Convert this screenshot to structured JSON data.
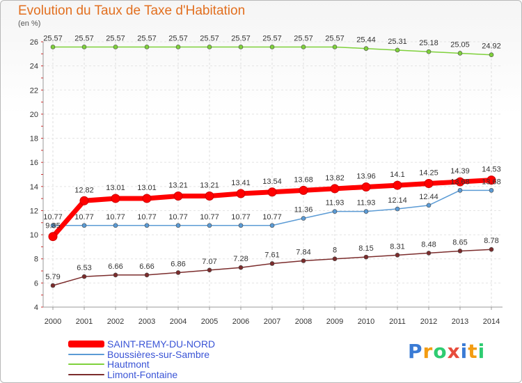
{
  "chart_data": {
    "type": "line",
    "title": "Evolution du Taux de Taxe d'Habitation",
    "ylabel": "(en %)",
    "xlabel": "",
    "ylim": [
      4,
      26
    ],
    "yticks": [
      4,
      6,
      8,
      10,
      12,
      14,
      16,
      18,
      20,
      22,
      24,
      26
    ],
    "x": [
      "2000",
      "2001",
      "2002",
      "2003",
      "2004",
      "2005",
      "2006",
      "2007",
      "2008",
      "2009",
      "2010",
      "2011",
      "2012",
      "2013",
      "2014"
    ],
    "series": [
      {
        "name": "Hautmont",
        "color": "#7fd13b",
        "values": [
          25.57,
          25.57,
          25.57,
          25.57,
          25.57,
          25.57,
          25.57,
          25.57,
          25.57,
          25.57,
          25.44,
          25.31,
          25.18,
          25.05,
          24.92
        ],
        "labels": [
          "25.57",
          "25.57",
          "25.57",
          "25.57",
          "25.57",
          "25.57",
          "25.57",
          "25.57",
          "25.57",
          "25.57",
          "25.44",
          "25.31",
          "25.18",
          "25.05",
          "24.92"
        ]
      },
      {
        "name": "Boussières-sur-Sambre",
        "color": "#5b9bd5",
        "values": [
          10.77,
          10.77,
          10.77,
          10.77,
          10.77,
          10.77,
          10.77,
          10.77,
          11.36,
          11.93,
          11.93,
          12.14,
          12.44,
          13.68,
          13.68
        ],
        "labels": [
          "10.77",
          "10.77",
          "10.77",
          "10.77",
          "10.77",
          "10.77",
          "10.77",
          "10.77",
          "11.36",
          "11.93",
          "11.93",
          "12.14",
          "12.44",
          "13.68",
          "13.68"
        ]
      },
      {
        "name": "Limont-Fontaine",
        "color": "#7b2c2c",
        "values": [
          5.79,
          6.53,
          6.66,
          6.66,
          6.86,
          7.07,
          7.28,
          7.61,
          7.84,
          8,
          8.15,
          8.31,
          8.48,
          8.65,
          8.78
        ],
        "labels": [
          "5.79",
          "6.53",
          "6.66",
          "6.66",
          "6.86",
          "7.07",
          "7.28",
          "7.61",
          "7.84",
          "8",
          "8.15",
          "8.31",
          "8.48",
          "8.65",
          "8.78"
        ]
      },
      {
        "name": "SAINT-REMY-DU-NORD",
        "color": "#ff0000",
        "values": [
          9.85,
          12.82,
          13.01,
          13.01,
          13.21,
          13.21,
          13.41,
          13.54,
          13.68,
          13.82,
          13.96,
          14.1,
          14.25,
          14.39,
          14.53
        ],
        "labels": [
          "9.85",
          "12.82",
          "13.01",
          "13.01",
          "13.21",
          "13.21",
          "13.41",
          "13.54",
          "13.68",
          "13.82",
          "13.96",
          "14.1",
          "14.25",
          "14.39",
          "14.53"
        ]
      }
    ]
  },
  "legend": {
    "items": [
      {
        "name": "SAINT-REMY-DU-NORD",
        "color": "#ff0000"
      },
      {
        "name": "Boussières-sur-Sambre",
        "color": "#5b9bd5"
      },
      {
        "name": "Hautmont",
        "color": "#7fd13b"
      },
      {
        "name": "Limont-Fontaine",
        "color": "#7b2c2c"
      }
    ]
  },
  "logo": {
    "letters": [
      "P",
      "r",
      "o",
      "x",
      "i",
      "t",
      "i"
    ],
    "colors": [
      "#3a7bd5",
      "#f39c12",
      "#2ecc71",
      "#e74c3c",
      "#3a7bd5",
      "#f39c12",
      "#2ecc71"
    ]
  }
}
